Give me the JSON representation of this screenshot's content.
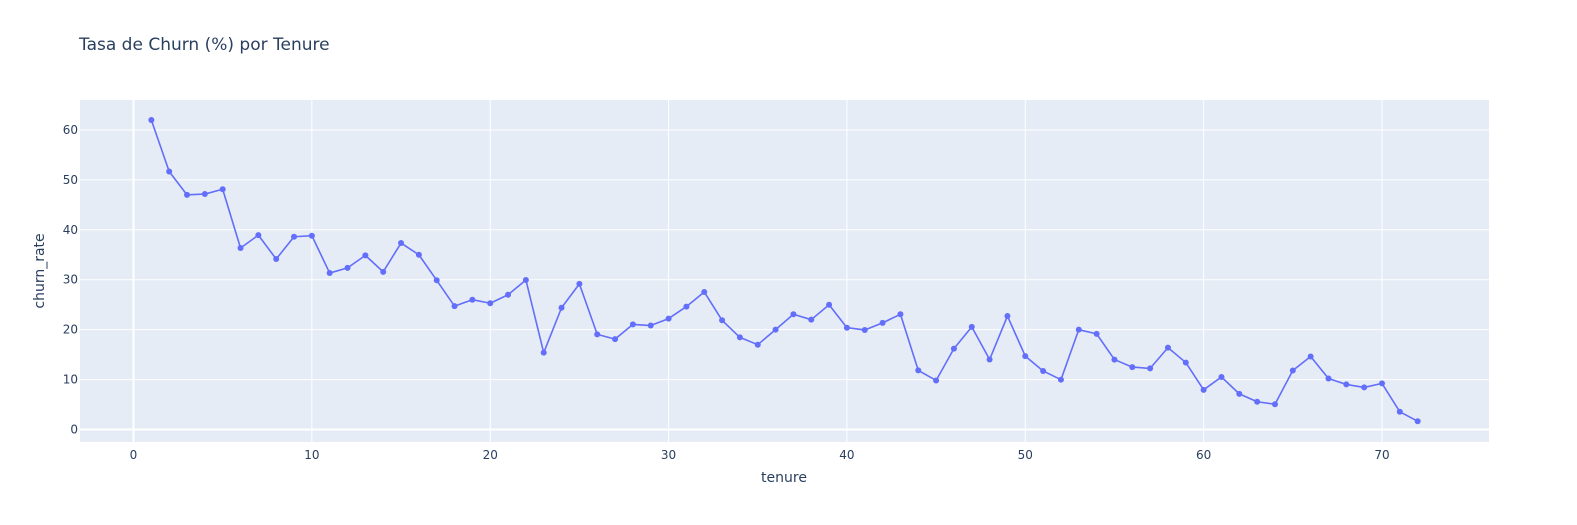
{
  "chart_data": {
    "type": "line",
    "title": "Tasa de Churn (%) por Tenure",
    "xlabel": "tenure",
    "ylabel": "churn_rate",
    "xlim": [
      -3,
      76
    ],
    "ylim": [
      -2.5,
      66
    ],
    "xticks": [
      0,
      10,
      20,
      30,
      40,
      50,
      60,
      70
    ],
    "yticks": [
      0,
      10,
      20,
      30,
      40,
      50,
      60
    ],
    "grid": true,
    "line_color": "#636efa",
    "plot_bg": "#e5ecf6",
    "series": [
      {
        "x": [
          1,
          2,
          3,
          4,
          5,
          6,
          7,
          8,
          9,
          10,
          11,
          12,
          13,
          14,
          15,
          16,
          17,
          18,
          19,
          20,
          21,
          22,
          23,
          24,
          25,
          26,
          27,
          28,
          29,
          30,
          31,
          32,
          33,
          34,
          35,
          36,
          37,
          38,
          39,
          40,
          41,
          42,
          43,
          44,
          45,
          46,
          47,
          48,
          49,
          50,
          51,
          52,
          53,
          54,
          55,
          56,
          57,
          58,
          59,
          60,
          61,
          62,
          63,
          64,
          65,
          66,
          67,
          68,
          69,
          70,
          71,
          72
        ],
        "y": [
          61.99,
          51.68,
          47.0,
          47.16,
          48.12,
          36.36,
          38.93,
          34.15,
          38.61,
          38.82,
          31.34,
          32.38,
          34.88,
          31.58,
          37.35,
          35.0,
          29.89,
          24.71,
          26.0,
          25.29,
          26.99,
          29.95,
          15.39,
          24.39,
          29.17,
          19.05,
          18.1,
          21.05,
          20.83,
          22.22,
          24.62,
          27.55,
          21.88,
          18.45,
          16.99,
          20.0,
          23.08,
          22.0,
          25.0,
          20.39,
          19.94,
          21.36,
          23.08,
          11.84,
          9.82,
          16.21,
          20.55,
          14.02,
          22.73,
          14.71,
          11.73,
          9.98,
          20.0,
          19.16,
          14.01,
          12.5,
          12.24,
          16.4,
          13.41,
          7.95,
          10.53,
          7.14,
          5.56,
          5.06,
          11.83,
          14.62,
          10.21,
          9.03,
          8.43,
          9.24,
          3.55,
          1.66
        ]
      }
    ]
  }
}
